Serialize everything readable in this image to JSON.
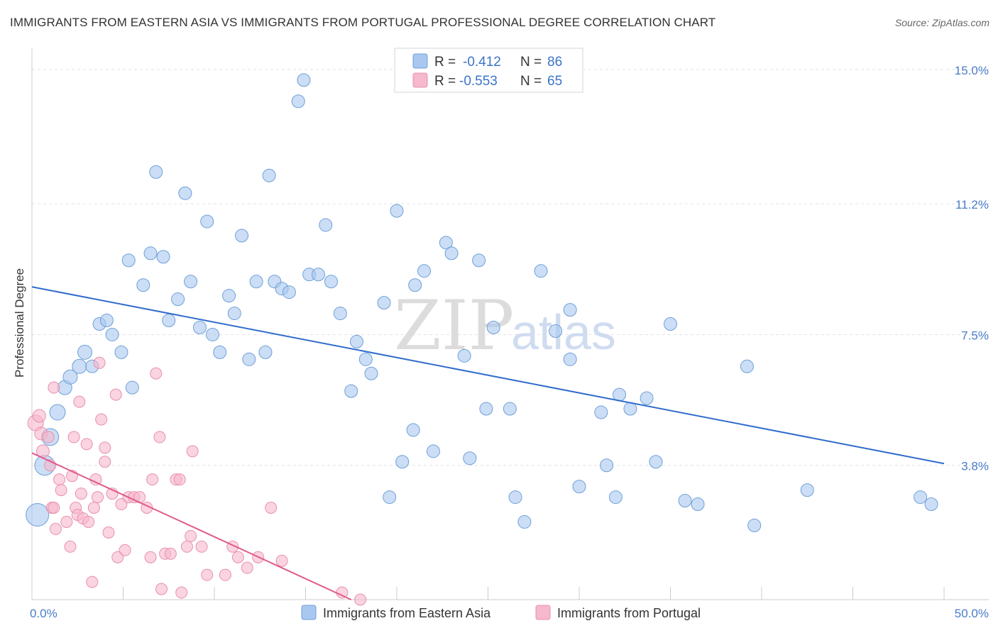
{
  "header": {
    "title": "IMMIGRANTS FROM EASTERN ASIA VS IMMIGRANTS FROM PORTUGAL PROFESSIONAL DEGREE CORRELATION CHART",
    "source": "Source: ZipAtlas.com"
  },
  "watermark": {
    "zip": "ZIP",
    "atlas": "atlas"
  },
  "legend": {
    "r_label": "R =",
    "n_label": "N =",
    "rows": [
      {
        "r": "-0.412",
        "n": "86",
        "color": "#a8c8f0"
      },
      {
        "r": "-0.553",
        "n": "65",
        "color": "#f6b8cc"
      }
    ]
  },
  "bottom_legend": [
    {
      "label": "Immigrants from Eastern Asia",
      "color": "#a8c8f0"
    },
    {
      "label": "Immigrants from Portugal",
      "color": "#f6b8cc"
    }
  ],
  "chart_data": {
    "type": "scatter",
    "title": "IMMIGRANTS FROM EASTERN ASIA VS IMMIGRANTS FROM PORTUGAL PROFESSIONAL DEGREE CORRELATION CHART",
    "xlabel": "",
    "ylabel": "Professional Degree",
    "xlim": [
      0,
      50
    ],
    "ylim": [
      0,
      15.4
    ],
    "x_tick_labels": [
      {
        "value": 0,
        "label": "0.0%"
      },
      {
        "value": 50,
        "label": "50.0%"
      }
    ],
    "y_tick_labels": [
      {
        "value": 3.8,
        "label": "3.8%"
      },
      {
        "value": 7.5,
        "label": "7.5%"
      },
      {
        "value": 11.2,
        "label": "11.2%"
      },
      {
        "value": 15.0,
        "label": "15.0%"
      }
    ],
    "grid": true,
    "legend_position": "top-center",
    "series": [
      {
        "name": "Immigrants from Eastern Asia",
        "color": "#a8c8f0",
        "edge_color": "#6f9fd8",
        "line_color": "#2f6ccc",
        "trend": {
          "x": [
            0,
            50
          ],
          "y": [
            8.85,
            3.85
          ]
        },
        "points": [
          [
            0.3,
            2.4,
            16
          ],
          [
            0.7,
            3.8,
            14
          ],
          [
            1.0,
            4.6,
            12
          ],
          [
            1.4,
            5.3,
            11
          ],
          [
            1.8,
            6.0,
            10
          ],
          [
            2.1,
            6.3,
            10
          ],
          [
            2.6,
            6.6,
            10
          ],
          [
            2.9,
            7.0,
            10
          ],
          [
            3.3,
            6.6,
            9
          ],
          [
            3.7,
            7.8,
            9
          ],
          [
            4.1,
            7.9,
            9
          ],
          [
            4.4,
            7.5,
            9
          ],
          [
            4.9,
            7.0,
            9
          ],
          [
            5.3,
            9.6,
            9
          ],
          [
            5.5,
            6.0,
            9
          ],
          [
            6.1,
            8.9,
            9
          ],
          [
            6.5,
            9.8,
            9
          ],
          [
            6.8,
            12.1,
            9
          ],
          [
            7.2,
            9.7,
            9
          ],
          [
            7.5,
            7.9,
            9
          ],
          [
            8.0,
            8.5,
            9
          ],
          [
            8.4,
            11.5,
            9
          ],
          [
            8.7,
            9.0,
            9
          ],
          [
            9.2,
            7.7,
            9
          ],
          [
            9.6,
            10.7,
            9
          ],
          [
            9.9,
            7.5,
            9
          ],
          [
            10.3,
            7.0,
            9
          ],
          [
            10.8,
            8.6,
            9
          ],
          [
            11.1,
            8.1,
            9
          ],
          [
            11.5,
            10.3,
            9
          ],
          [
            11.9,
            6.8,
            9
          ],
          [
            12.3,
            9.0,
            9
          ],
          [
            12.8,
            7.0,
            9
          ],
          [
            13.0,
            12.0,
            9
          ],
          [
            13.3,
            9.0,
            9
          ],
          [
            13.7,
            8.8,
            9
          ],
          [
            14.1,
            8.7,
            9
          ],
          [
            14.6,
            14.1,
            9
          ],
          [
            14.9,
            14.7,
            9
          ],
          [
            15.2,
            9.2,
            9
          ],
          [
            15.7,
            9.2,
            9
          ],
          [
            16.1,
            10.6,
            9
          ],
          [
            16.4,
            9.0,
            9
          ],
          [
            16.9,
            8.1,
            9
          ],
          [
            17.5,
            5.9,
            9
          ],
          [
            17.8,
            7.3,
            9
          ],
          [
            18.3,
            6.8,
            9
          ],
          [
            18.6,
            6.4,
            9
          ],
          [
            19.3,
            8.4,
            9
          ],
          [
            19.6,
            2.9,
            9
          ],
          [
            20.0,
            11.0,
            9
          ],
          [
            20.3,
            3.9,
            9
          ],
          [
            20.9,
            4.8,
            9
          ],
          [
            21.0,
            8.9,
            9
          ],
          [
            21.5,
            9.3,
            9
          ],
          [
            22.0,
            4.2,
            9
          ],
          [
            22.7,
            10.1,
            9
          ],
          [
            23.0,
            9.8,
            9
          ],
          [
            23.7,
            6.9,
            9
          ],
          [
            24.0,
            4.0,
            9
          ],
          [
            24.5,
            9.6,
            9
          ],
          [
            24.9,
            5.4,
            9
          ],
          [
            25.3,
            7.7,
            9
          ],
          [
            26.2,
            5.4,
            9
          ],
          [
            26.5,
            2.9,
            9
          ],
          [
            27.0,
            2.2,
            9
          ],
          [
            27.9,
            9.3,
            9
          ],
          [
            28.7,
            7.6,
            9
          ],
          [
            29.5,
            8.2,
            9
          ],
          [
            29.5,
            6.8,
            9
          ],
          [
            30.0,
            3.2,
            9
          ],
          [
            31.2,
            5.3,
            9
          ],
          [
            31.5,
            3.8,
            9
          ],
          [
            32.0,
            2.9,
            9
          ],
          [
            32.2,
            5.8,
            9
          ],
          [
            32.8,
            5.4,
            9
          ],
          [
            33.7,
            5.7,
            9
          ],
          [
            34.2,
            3.9,
            9
          ],
          [
            35.0,
            7.8,
            9
          ],
          [
            35.8,
            2.8,
            9
          ],
          [
            36.5,
            2.7,
            9
          ],
          [
            39.2,
            6.6,
            9
          ],
          [
            39.6,
            2.1,
            9
          ],
          [
            42.5,
            3.1,
            9
          ],
          [
            48.7,
            2.9,
            9
          ],
          [
            49.3,
            2.7,
            9
          ]
        ]
      },
      {
        "name": "Immigrants from Portugal",
        "color": "#f6b8cc",
        "edge_color": "#e890ac",
        "line_color": "#e05a8a",
        "trend": {
          "x": [
            0,
            17.5
          ],
          "y": [
            4.15,
            0
          ]
        },
        "points": [
          [
            0.2,
            5.0,
            11
          ],
          [
            0.4,
            5.2,
            9
          ],
          [
            0.5,
            4.7,
            9
          ],
          [
            0.6,
            4.2,
            9
          ],
          [
            0.9,
            4.6,
            8
          ],
          [
            1.0,
            3.8,
            8
          ],
          [
            1.1,
            2.6,
            8
          ],
          [
            1.2,
            2.6,
            8
          ],
          [
            1.2,
            6.0,
            8
          ],
          [
            1.3,
            2.0,
            8
          ],
          [
            1.5,
            3.4,
            8
          ],
          [
            1.6,
            3.1,
            8
          ],
          [
            1.9,
            2.2,
            8
          ],
          [
            2.1,
            1.5,
            8
          ],
          [
            2.2,
            3.5,
            8
          ],
          [
            2.3,
            4.6,
            8
          ],
          [
            2.4,
            2.6,
            8
          ],
          [
            2.5,
            2.4,
            8
          ],
          [
            2.6,
            5.6,
            8
          ],
          [
            2.7,
            3.0,
            8
          ],
          [
            2.8,
            2.3,
            8
          ],
          [
            3.0,
            4.4,
            8
          ],
          [
            3.1,
            2.2,
            8
          ],
          [
            3.3,
            0.5,
            8
          ],
          [
            3.4,
            2.6,
            8
          ],
          [
            3.5,
            3.4,
            8
          ],
          [
            3.6,
            2.9,
            8
          ],
          [
            3.7,
            6.7,
            8
          ],
          [
            3.8,
            5.1,
            8
          ],
          [
            4.0,
            4.3,
            8
          ],
          [
            4.0,
            3.9,
            8
          ],
          [
            4.2,
            1.9,
            8
          ],
          [
            4.4,
            3.0,
            8
          ],
          [
            4.6,
            5.8,
            8
          ],
          [
            4.7,
            1.2,
            8
          ],
          [
            4.9,
            2.7,
            8
          ],
          [
            5.1,
            1.4,
            8
          ],
          [
            5.3,
            2.9,
            8
          ],
          [
            5.6,
            2.9,
            8
          ],
          [
            5.9,
            2.9,
            8
          ],
          [
            6.3,
            2.6,
            8
          ],
          [
            6.5,
            1.2,
            8
          ],
          [
            6.6,
            3.4,
            8
          ],
          [
            6.8,
            6.4,
            8
          ],
          [
            7.0,
            4.6,
            8
          ],
          [
            7.1,
            0.3,
            8
          ],
          [
            7.3,
            1.3,
            8
          ],
          [
            7.6,
            1.3,
            8
          ],
          [
            7.9,
            3.4,
            8
          ],
          [
            8.1,
            3.4,
            8
          ],
          [
            8.2,
            0.2,
            8
          ],
          [
            8.5,
            1.5,
            8
          ],
          [
            8.7,
            1.8,
            8
          ],
          [
            8.8,
            4.2,
            8
          ],
          [
            9.3,
            1.5,
            8
          ],
          [
            9.6,
            0.7,
            8
          ],
          [
            10.6,
            0.7,
            8
          ],
          [
            11.0,
            1.5,
            8
          ],
          [
            11.3,
            1.2,
            8
          ],
          [
            11.8,
            0.9,
            8
          ],
          [
            12.4,
            1.2,
            8
          ],
          [
            13.1,
            2.6,
            8
          ],
          [
            13.7,
            1.1,
            8
          ],
          [
            17.0,
            0.2,
            8
          ],
          [
            18.0,
            0.0,
            8
          ]
        ]
      }
    ]
  }
}
